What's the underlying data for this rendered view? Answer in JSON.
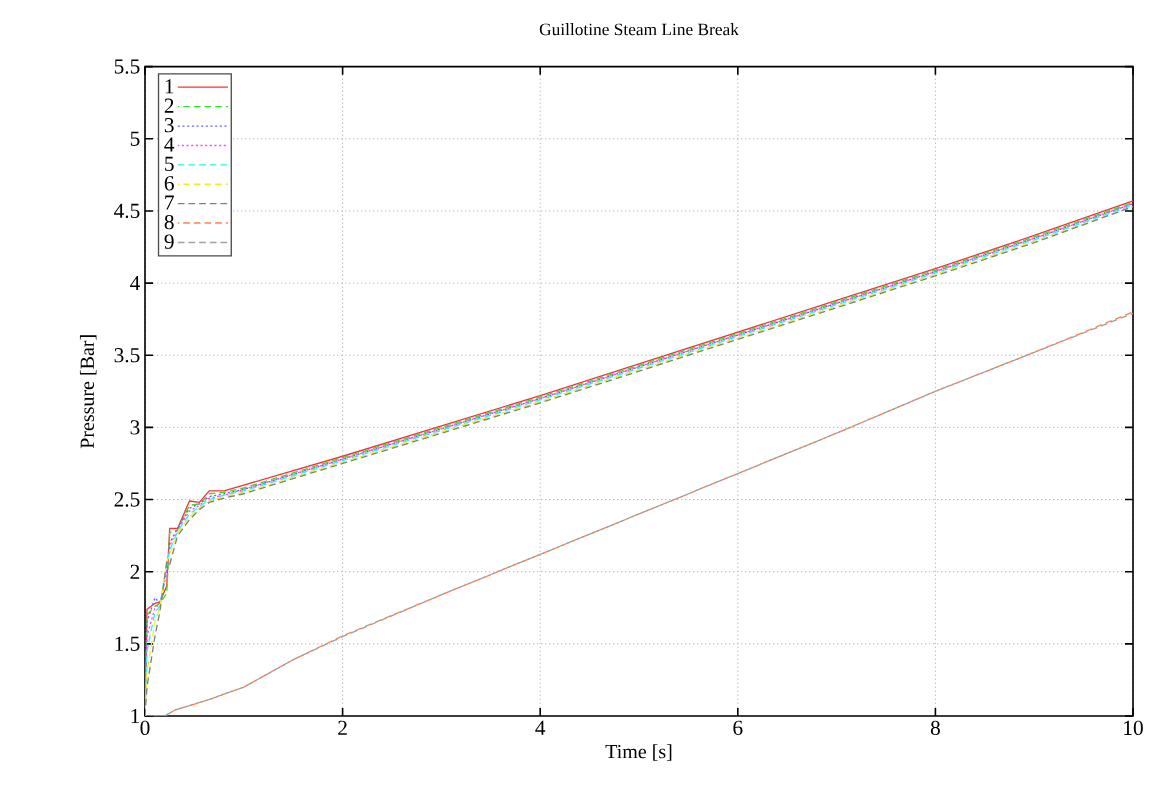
{
  "chart_data": {
    "type": "line",
    "title": "Guillotine Steam Line Break",
    "xlabel": "Time [s]",
    "ylabel": "Pressure [Bar]",
    "xlim": [
      0,
      10
    ],
    "ylim": [
      1,
      5.5
    ],
    "xticks": [
      0,
      2,
      4,
      6,
      8,
      10
    ],
    "yticks": [
      1,
      1.5,
      2,
      2.5,
      3,
      3.5,
      4,
      4.5,
      5,
      5.5
    ],
    "grid": true,
    "legend": "top left",
    "marker": "none",
    "x": [
      0,
      0.02,
      0.1,
      0.15,
      0.22,
      0.25,
      0.33,
      0.45,
      0.55,
      0.65,
      0.8,
      1,
      2,
      3,
      4,
      5,
      6,
      7,
      8,
      9,
      10
    ],
    "series": [
      {
        "name": "1",
        "color": "#ff3030",
        "line_style": "solid",
        "values": [
          1.0,
          1.74,
          1.78,
          1.79,
          1.9,
          2.3,
          2.3,
          2.49,
          2.48,
          2.56,
          2.56,
          2.6,
          2.8,
          3.01,
          3.22,
          3.44,
          3.66,
          3.88,
          4.1,
          4.33,
          4.57
        ]
      },
      {
        "name": "2",
        "color": "#30e030",
        "line_style": "dashed",
        "values": [
          1.0,
          1.7,
          1.76,
          1.78,
          1.85,
          2.27,
          2.29,
          2.46,
          2.47,
          2.54,
          2.55,
          2.58,
          2.79,
          3.0,
          3.21,
          3.43,
          3.65,
          3.87,
          4.09,
          4.32,
          4.56
        ]
      },
      {
        "name": "3",
        "color": "#6060ff",
        "line_style": "dotted",
        "values": [
          1.0,
          1.65,
          1.82,
          1.78,
          2.0,
          2.2,
          2.3,
          2.44,
          2.47,
          2.52,
          2.54,
          2.57,
          2.78,
          2.99,
          3.2,
          3.42,
          3.64,
          3.86,
          4.08,
          4.31,
          4.55
        ]
      },
      {
        "name": "4",
        "color": "#ff40ff",
        "line_style": "dotted",
        "values": [
          1.0,
          1.55,
          1.75,
          1.77,
          2.02,
          2.18,
          2.29,
          2.42,
          2.46,
          2.51,
          2.53,
          2.57,
          2.78,
          2.99,
          3.2,
          3.42,
          3.64,
          3.86,
          4.08,
          4.31,
          4.55
        ]
      },
      {
        "name": "5",
        "color": "#30f0f0",
        "line_style": "dashed",
        "values": [
          1.0,
          1.45,
          1.72,
          1.76,
          2.05,
          2.15,
          2.28,
          2.4,
          2.45,
          2.5,
          2.53,
          2.56,
          2.77,
          2.98,
          3.19,
          3.41,
          3.63,
          3.85,
          4.07,
          4.3,
          4.54
        ]
      },
      {
        "name": "6",
        "color": "#f0f020",
        "line_style": "dashed",
        "values": [
          1.0,
          1.3,
          1.65,
          1.75,
          2.07,
          2.12,
          2.27,
          2.38,
          2.44,
          2.49,
          2.52,
          2.55,
          2.76,
          2.97,
          3.18,
          3.4,
          3.62,
          3.84,
          4.06,
          4.29,
          4.53
        ]
      },
      {
        "name": "7",
        "color": "#808080",
        "line_style": "dashed",
        "values": [
          1.0,
          1.2,
          1.55,
          1.72,
          2.07,
          2.05,
          2.25,
          2.36,
          2.43,
          2.48,
          2.51,
          2.54,
          2.75,
          2.96,
          3.17,
          3.39,
          3.61,
          3.83,
          4.05,
          4.28,
          4.53
        ]
      },
      {
        "name": "8",
        "color": "#ff8050",
        "line_style": "dashed",
        "x": [
          0,
          0.2,
          0.3,
          0.63,
          1,
          1.5,
          2,
          3,
          4,
          5,
          6,
          7,
          8,
          9,
          10
        ],
        "values": [
          1.0,
          1.0,
          1.04,
          1.11,
          1.2,
          1.39,
          1.555,
          1.84,
          2.12,
          2.4,
          2.68,
          2.96,
          3.25,
          3.52,
          3.8
        ]
      },
      {
        "name": "9",
        "color": "#a0a0a0",
        "line_style": "dashed",
        "x": [
          0,
          0.2,
          0.3,
          0.63,
          1,
          1.5,
          2,
          3,
          4,
          5,
          6,
          7,
          8,
          9,
          10
        ],
        "values": [
          1.0,
          1.0,
          1.04,
          1.11,
          1.2,
          1.39,
          1.55,
          1.84,
          2.12,
          2.4,
          2.68,
          2.96,
          3.25,
          3.52,
          3.79
        ]
      }
    ]
  }
}
